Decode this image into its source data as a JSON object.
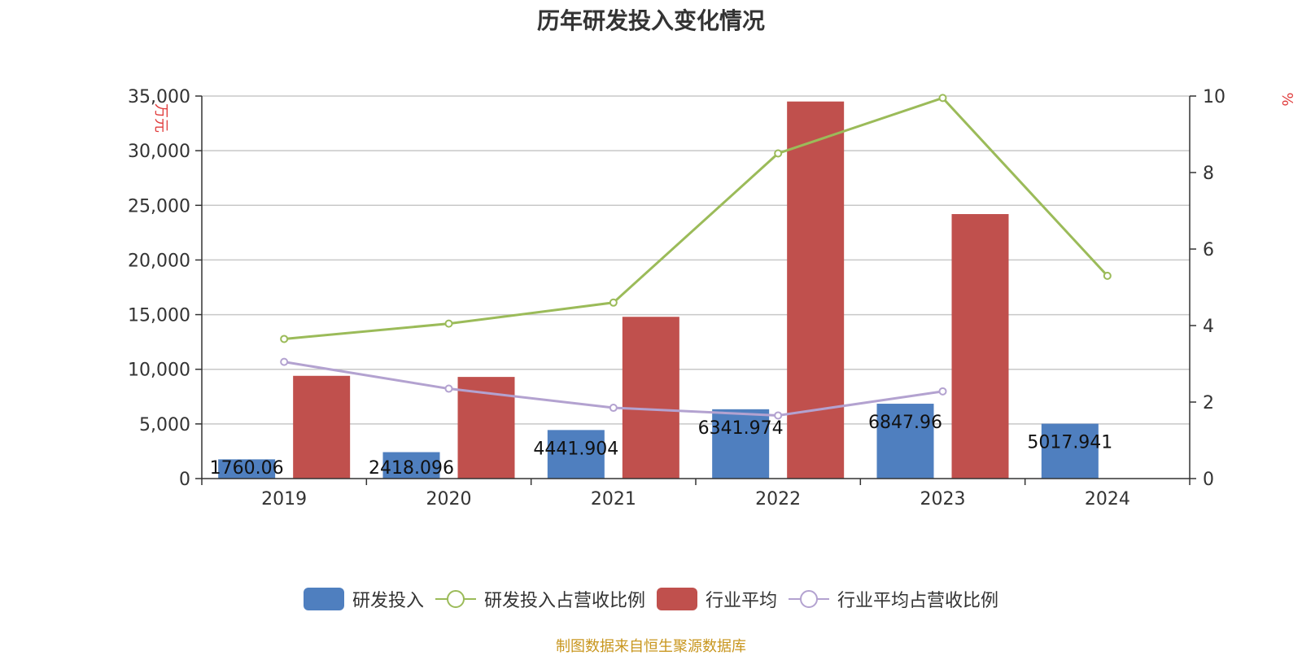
{
  "title": "历年研发投入变化情况",
  "footer": "制图数据来自恒生聚源数据库",
  "chart_data": {
    "type": "bar",
    "categories": [
      "2019",
      "2020",
      "2021",
      "2022",
      "2023",
      "2024"
    ],
    "left_axis": {
      "unit_label": "万元",
      "ylim": [
        0,
        35000
      ],
      "ticks": [
        0,
        5000,
        10000,
        15000,
        20000,
        25000,
        30000,
        35000
      ],
      "tick_labels": [
        "0",
        "5,000",
        "10,000",
        "15,000",
        "20,000",
        "25,000",
        "30,000",
        "35,000"
      ]
    },
    "right_axis": {
      "unit_label": "%",
      "ylim": [
        0,
        10
      ],
      "ticks": [
        0,
        2,
        4,
        6,
        8,
        10
      ],
      "tick_labels": [
        "0",
        "2",
        "4",
        "6",
        "8",
        "10"
      ]
    },
    "grid": true,
    "legend_position": "bottom",
    "series": [
      {
        "name": "研发投入",
        "kind": "bar",
        "axis": "left",
        "color": "#4f7fbf",
        "values": [
          1760.06,
          2418.096,
          4441.904,
          6341.974,
          6847.96,
          5017.941
        ],
        "labels": [
          "1760.06",
          "2418.096",
          "4441.904",
          "6341.974",
          "6847.96",
          "5017.941"
        ]
      },
      {
        "name": "研发投入占营收比例",
        "kind": "line",
        "axis": "right",
        "color": "#9bbb59",
        "values": [
          3.65,
          4.05,
          4.6,
          8.5,
          9.95,
          5.3
        ]
      },
      {
        "name": "行业平均",
        "kind": "bar",
        "axis": "left",
        "color": "#c0504d",
        "values": [
          9400,
          9300,
          14800,
          34500,
          24200,
          null
        ]
      },
      {
        "name": "行业平均占营收比例",
        "kind": "line",
        "axis": "right",
        "color": "#b3a2d0",
        "values": [
          3.05,
          2.35,
          1.85,
          1.65,
          2.28,
          null
        ]
      }
    ]
  }
}
